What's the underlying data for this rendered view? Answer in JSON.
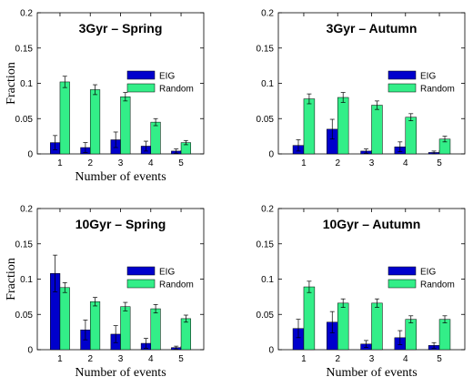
{
  "chart_data": [
    {
      "type": "bar",
      "title": "3Gyr – Spring",
      "xlabel": "Number of events",
      "ylabel": "Fraction",
      "categories": [
        "1",
        "2",
        "3",
        "4",
        "5"
      ],
      "ylim": [
        0,
        0.2
      ],
      "yticks": [
        "0",
        "0.05",
        "0.1",
        "0.15",
        "0.2"
      ],
      "legend_position": "center-right",
      "series": [
        {
          "name": "EIG",
          "color": "#0000cc",
          "values": [
            0.016,
            0.009,
            0.02,
            0.011,
            0.004
          ],
          "errors": [
            0.01,
            0.007,
            0.011,
            0.007,
            0.003
          ]
        },
        {
          "name": "Random",
          "color": "#33ee88",
          "values": [
            0.102,
            0.091,
            0.081,
            0.045,
            0.016
          ],
          "errors": [
            0.008,
            0.007,
            0.006,
            0.005,
            0.003
          ]
        }
      ]
    },
    {
      "type": "bar",
      "title": "3Gyr – Autumn",
      "xlabel": "",
      "ylabel": "",
      "categories": [
        "1",
        "2",
        "3",
        "4",
        "5"
      ],
      "ylim": [
        0,
        0.2
      ],
      "yticks": [
        "0",
        "0.05",
        "0.1",
        "0.15",
        "0.2"
      ],
      "legend_position": "center-right",
      "series": [
        {
          "name": "EIG",
          "color": "#0000cc",
          "values": [
            0.012,
            0.035,
            0.004,
            0.01,
            0.002
          ],
          "errors": [
            0.008,
            0.014,
            0.003,
            0.007,
            0.002
          ]
        },
        {
          "name": "Random",
          "color": "#33ee88",
          "values": [
            0.078,
            0.08,
            0.069,
            0.052,
            0.021
          ],
          "errors": [
            0.007,
            0.007,
            0.006,
            0.005,
            0.004
          ]
        }
      ]
    },
    {
      "type": "bar",
      "title": "10Gyr – Spring",
      "xlabel": "Number of events",
      "ylabel": "Fraction",
      "categories": [
        "1",
        "2",
        "3",
        "4",
        "5"
      ],
      "ylim": [
        0,
        0.2
      ],
      "yticks": [
        "0",
        "0.05",
        "0.1",
        "0.15",
        "0.2"
      ],
      "legend_position": "center-right",
      "series": [
        {
          "name": "EIG",
          "color": "#0000cc",
          "values": [
            0.108,
            0.028,
            0.022,
            0.009,
            0.003
          ],
          "errors": [
            0.026,
            0.014,
            0.012,
            0.007,
            0.002
          ]
        },
        {
          "name": "Random",
          "color": "#33ee88",
          "values": [
            0.088,
            0.068,
            0.061,
            0.058,
            0.044
          ],
          "errors": [
            0.007,
            0.006,
            0.006,
            0.006,
            0.005
          ]
        }
      ]
    },
    {
      "type": "bar",
      "title": "10Gyr – Autumn",
      "xlabel": "Number of events",
      "ylabel": "",
      "categories": [
        "1",
        "2",
        "3",
        "4",
        "5"
      ],
      "ylim": [
        0,
        0.2
      ],
      "yticks": [
        "0",
        "0.05",
        "0.1",
        "0.15",
        "0.2"
      ],
      "legend_position": "center-right",
      "series": [
        {
          "name": "EIG",
          "color": "#0000cc",
          "values": [
            0.03,
            0.039,
            0.008,
            0.017,
            0.006
          ],
          "errors": [
            0.013,
            0.015,
            0.005,
            0.01,
            0.004
          ]
        },
        {
          "name": "Random",
          "color": "#33ee88",
          "values": [
            0.089,
            0.066,
            0.066,
            0.043,
            0.043
          ],
          "errors": [
            0.008,
            0.006,
            0.006,
            0.005,
            0.005
          ]
        }
      ]
    }
  ]
}
